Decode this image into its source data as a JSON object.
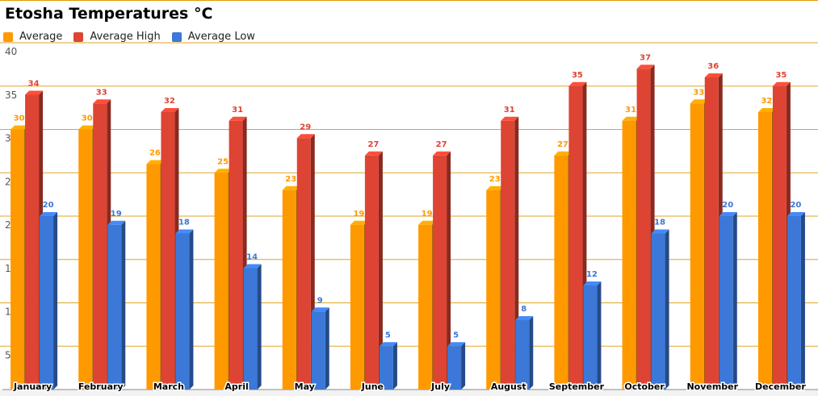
{
  "chart_data": {
    "type": "bar",
    "title": "Etosha Temperatures °C",
    "categories": [
      "January",
      "February",
      "March",
      "April",
      "May",
      "June",
      "July",
      "August",
      "September",
      "October",
      "November",
      "December"
    ],
    "series": [
      {
        "name": "Average",
        "color": "#ff9900",
        "values": [
          30,
          30,
          26,
          25,
          23,
          19,
          19,
          23,
          27,
          31,
          33,
          32
        ]
      },
      {
        "name": "Average High",
        "color": "#dd4433",
        "values": [
          34,
          33,
          32,
          31,
          29,
          27,
          27,
          31,
          35,
          37,
          36,
          35
        ]
      },
      {
        "name": "Average Low",
        "color": "#3b78d8",
        "values": [
          20,
          19,
          18,
          14,
          9,
          5,
          5,
          8,
          12,
          18,
          20,
          20
        ]
      }
    ],
    "y_ticks": [
      5,
      10,
      15,
      20,
      25,
      30,
      35,
      40
    ],
    "ylim": [
      0,
      40
    ],
    "grid": true,
    "legend_position": "top-left",
    "xlabel": "",
    "ylabel": ""
  }
}
